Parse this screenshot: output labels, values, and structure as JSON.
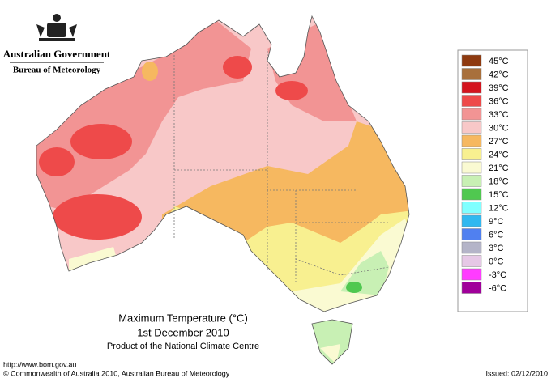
{
  "header": {
    "title": "Australian Government",
    "subtitle": "Bureau of Meteorology"
  },
  "map": {
    "title": "Maximum Temperature (°C)",
    "date": "1st December 2010",
    "credit": "Product of the National Climate Centre"
  },
  "legend": [
    {
      "value": 45,
      "label": "45°C",
      "color": "#8e3a10"
    },
    {
      "value": 42,
      "label": "42°C",
      "color": "#a8703c"
    },
    {
      "value": 39,
      "label": "39°C",
      "color": "#d4141e"
    },
    {
      "value": 36,
      "label": "36°C",
      "color": "#ee4a4a"
    },
    {
      "value": 33,
      "label": "33°C",
      "color": "#f29494"
    },
    {
      "value": 30,
      "label": "30°C",
      "color": "#f8c8c8"
    },
    {
      "value": 27,
      "label": "27°C",
      "color": "#f6b860"
    },
    {
      "value": 24,
      "label": "24°C",
      "color": "#f8f090"
    },
    {
      "value": 21,
      "label": "21°C",
      "color": "#fafad2"
    },
    {
      "value": 18,
      "label": "18°C",
      "color": "#c8f0b4"
    },
    {
      "value": 15,
      "label": "15°C",
      "color": "#50c850"
    },
    {
      "value": 12,
      "label": "12°C",
      "color": "#80ffff"
    },
    {
      "value": 9,
      "label": "9°C",
      "color": "#30b8f0"
    },
    {
      "value": 6,
      "label": "6°C",
      "color": "#5080f0"
    },
    {
      "value": 3,
      "label": "3°C",
      "color": "#b4b4c8"
    },
    {
      "value": 0,
      "label": "0°C",
      "color": "#e6c8e6"
    },
    {
      "value": -3,
      "label": "-3°C",
      "color": "#ff3cff"
    },
    {
      "value": -6,
      "label": "-6°C",
      "color": "#a0009a"
    }
  ],
  "footer": {
    "url": "http://www.bom.gov.au",
    "copyright": "© Commonwealth of Australia 2010, Australian Bureau of Meteorology",
    "issued": "Issued: 02/12/2010"
  }
}
